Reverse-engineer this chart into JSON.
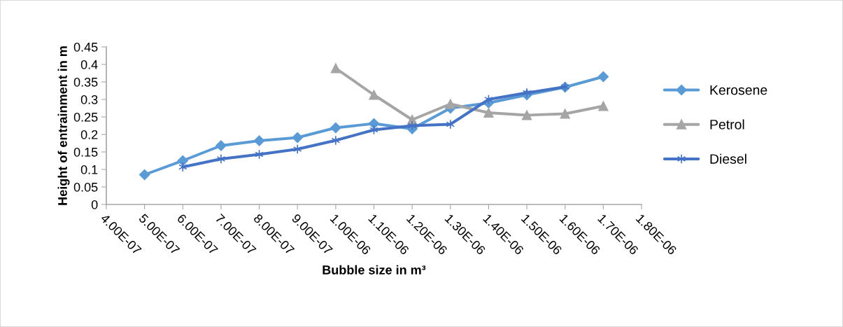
{
  "chart_data": {
    "type": "line",
    "xlabel": "Bubble size in m³",
    "ylabel": "Height of entrainment in m",
    "xlim": [
      4e-07,
      1.8e-06
    ],
    "xticks": [
      {
        "value": 4e-07,
        "label": "4.00E-07"
      },
      {
        "value": 5e-07,
        "label": "5.00E-07"
      },
      {
        "value": 6e-07,
        "label": "6.00E-07"
      },
      {
        "value": 7e-07,
        "label": "7.00E-07"
      },
      {
        "value": 8e-07,
        "label": "8.00E-07"
      },
      {
        "value": 9e-07,
        "label": "9.00E-07"
      },
      {
        "value": 1e-06,
        "label": "1.00E-06"
      },
      {
        "value": 1.1e-06,
        "label": "1.10E-06"
      },
      {
        "value": 1.2e-06,
        "label": "1.20E-06"
      },
      {
        "value": 1.3e-06,
        "label": "1.30E-06"
      },
      {
        "value": 1.4e-06,
        "label": "1.40E-06"
      },
      {
        "value": 1.5e-06,
        "label": "1.50E-06"
      },
      {
        "value": 1.6e-06,
        "label": "1.60E-06"
      },
      {
        "value": 1.7e-06,
        "label": "1.70E-06"
      },
      {
        "value": 1.8e-06,
        "label": "1.80E-06"
      }
    ],
    "ylim": [
      0,
      0.45
    ],
    "yticks": [
      0,
      0.05,
      0.1,
      0.15,
      0.2,
      0.25,
      0.3,
      0.35,
      0.4,
      0.45
    ],
    "grid": false,
    "legend": "right",
    "line_style": "solid",
    "series": [
      {
        "name": "Kerosene",
        "color": "#5b9bd5",
        "marker": "diamond",
        "x": [
          5e-07,
          6e-07,
          7e-07,
          8e-07,
          9e-07,
          1e-06,
          1.1e-06,
          1.2e-06,
          1.3e-06,
          1.4e-06,
          1.5e-06,
          1.6e-06,
          1.7e-06
        ],
        "values": [
          0.085,
          0.125,
          0.168,
          0.182,
          0.191,
          0.219,
          0.231,
          0.216,
          0.275,
          0.29,
          0.313,
          0.335,
          0.365
        ]
      },
      {
        "name": "Petrol",
        "color": "#a5a5a5",
        "marker": "triangle",
        "x": [
          1e-06,
          1.1e-06,
          1.2e-06,
          1.3e-06,
          1.4e-06,
          1.5e-06,
          1.6e-06,
          1.7e-06
        ],
        "values": [
          0.389,
          0.313,
          0.242,
          0.287,
          0.262,
          0.255,
          0.259,
          0.281
        ]
      },
      {
        "name": "Diesel",
        "color": "#4472c4",
        "marker": "cross",
        "x": [
          6e-07,
          7e-07,
          8e-07,
          9e-07,
          1e-06,
          1.1e-06,
          1.2e-06,
          1.3e-06,
          1.4e-06,
          1.5e-06,
          1.6e-06
        ],
        "values": [
          0.107,
          0.13,
          0.143,
          0.158,
          0.183,
          0.213,
          0.225,
          0.229,
          0.3,
          0.319,
          0.336
        ]
      }
    ]
  }
}
